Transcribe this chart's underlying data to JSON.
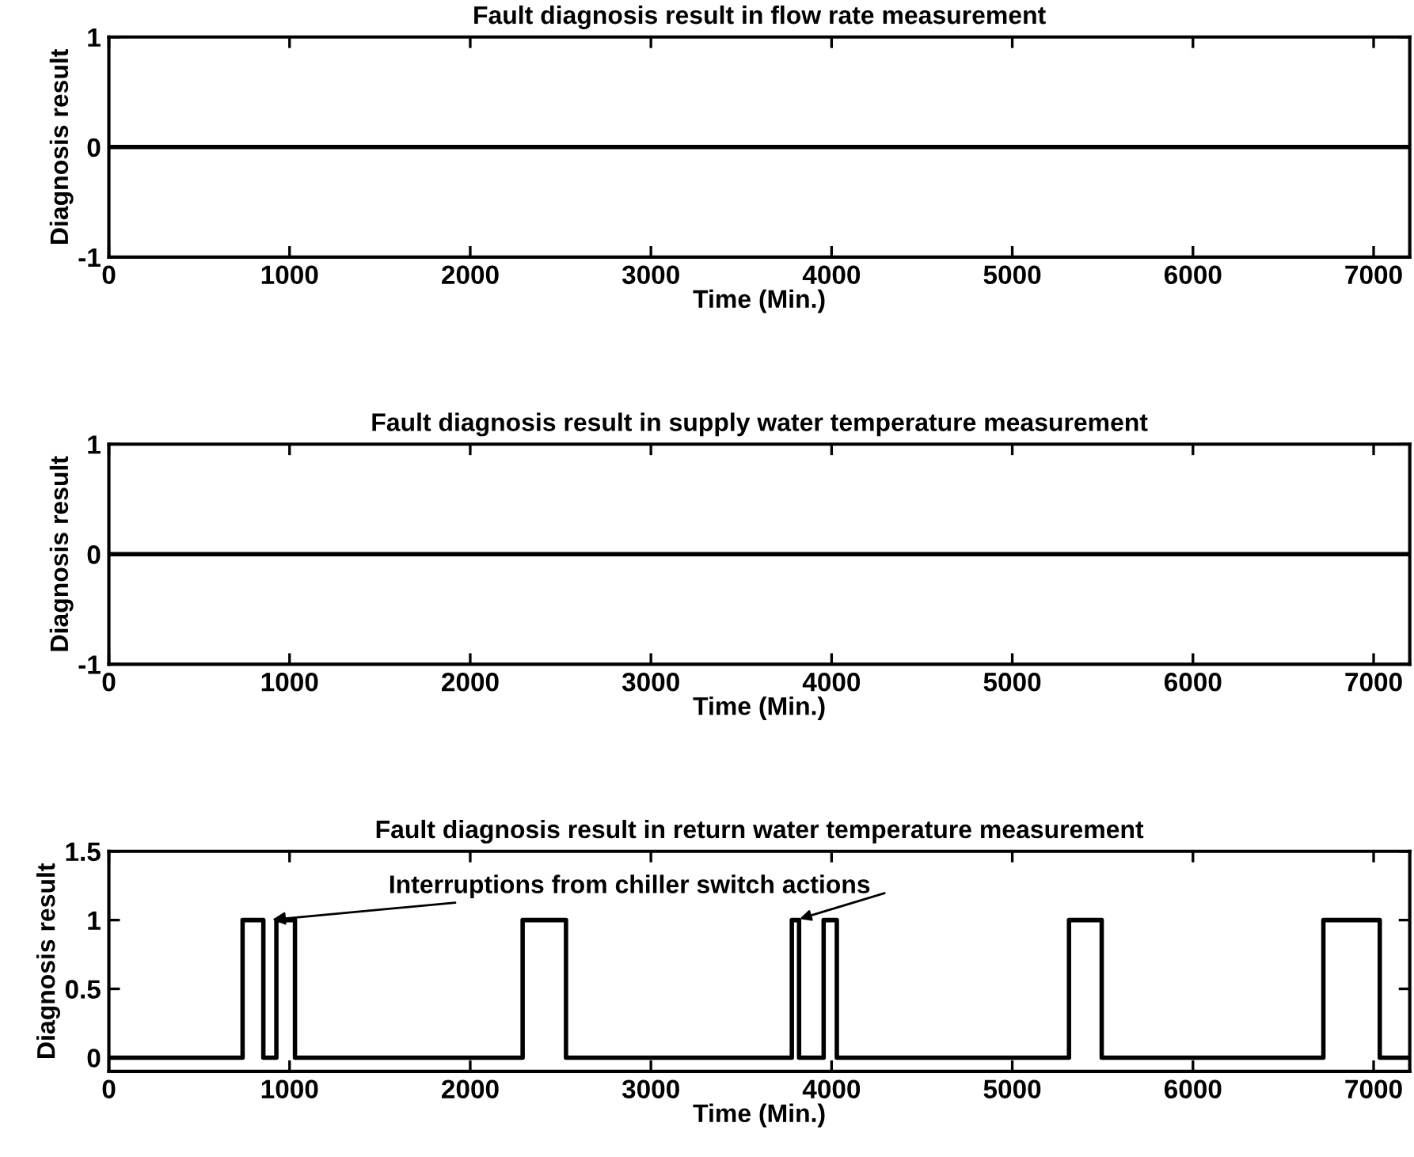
{
  "chart_data": [
    {
      "type": "line",
      "title": "Fault diagnosis result in flow rate measurement",
      "xlabel": "Time (Min.)",
      "ylabel": "Diagnosis result",
      "x": [
        0,
        7200
      ],
      "series": [
        {
          "color": "#000000",
          "values": [
            0,
            0
          ]
        }
      ],
      "xlim": [
        0,
        7200
      ],
      "xticks": [
        0,
        1000,
        2000,
        3000,
        4000,
        5000,
        6000,
        7000
      ],
      "ylim": [
        -1,
        1
      ],
      "yticks": [
        -1,
        0,
        1
      ],
      "grid": false,
      "legend": false
    },
    {
      "type": "line",
      "title": "Fault diagnosis result in supply water temperature measurement",
      "xlabel": "Time (Min.)",
      "ylabel": "Diagnosis result",
      "x": [
        0,
        7200
      ],
      "series": [
        {
          "color": "#000000",
          "values": [
            0,
            0
          ]
        }
      ],
      "xlim": [
        0,
        7200
      ],
      "xticks": [
        0,
        1000,
        2000,
        3000,
        4000,
        5000,
        6000,
        7000
      ],
      "ylim": [
        -1,
        1
      ],
      "yticks": [
        -1,
        0,
        1
      ],
      "grid": false,
      "legend": false
    },
    {
      "type": "step",
      "title": "Fault diagnosis result in return water temperature measurement",
      "xlabel": "Time (Min.)",
      "ylabel": "Diagnosis result",
      "x": [
        0,
        740,
        855,
        927,
        1030,
        2290,
        2530,
        3780,
        3820,
        3956,
        4029,
        5314,
        5495,
        6722,
        7034,
        7200
      ],
      "series": [
        {
          "color": "#000000",
          "values": [
            0,
            1,
            0,
            1,
            0,
            1,
            0,
            1,
            0,
            1,
            0,
            1,
            0,
            1,
            0,
            0
          ]
        }
      ],
      "annotations": [
        {
          "text": "Interruptions from chiller switch actions",
          "x": 880,
          "y": 1
        }
      ],
      "xlim": [
        0,
        7200
      ],
      "xticks": [
        0,
        1000,
        2000,
        3000,
        4000,
        5000,
        6000,
        7000
      ],
      "ylim": [
        -0.1,
        1.5
      ],
      "yticks": [
        0,
        0.5,
        1,
        1.5
      ],
      "grid": false,
      "legend": false
    }
  ]
}
